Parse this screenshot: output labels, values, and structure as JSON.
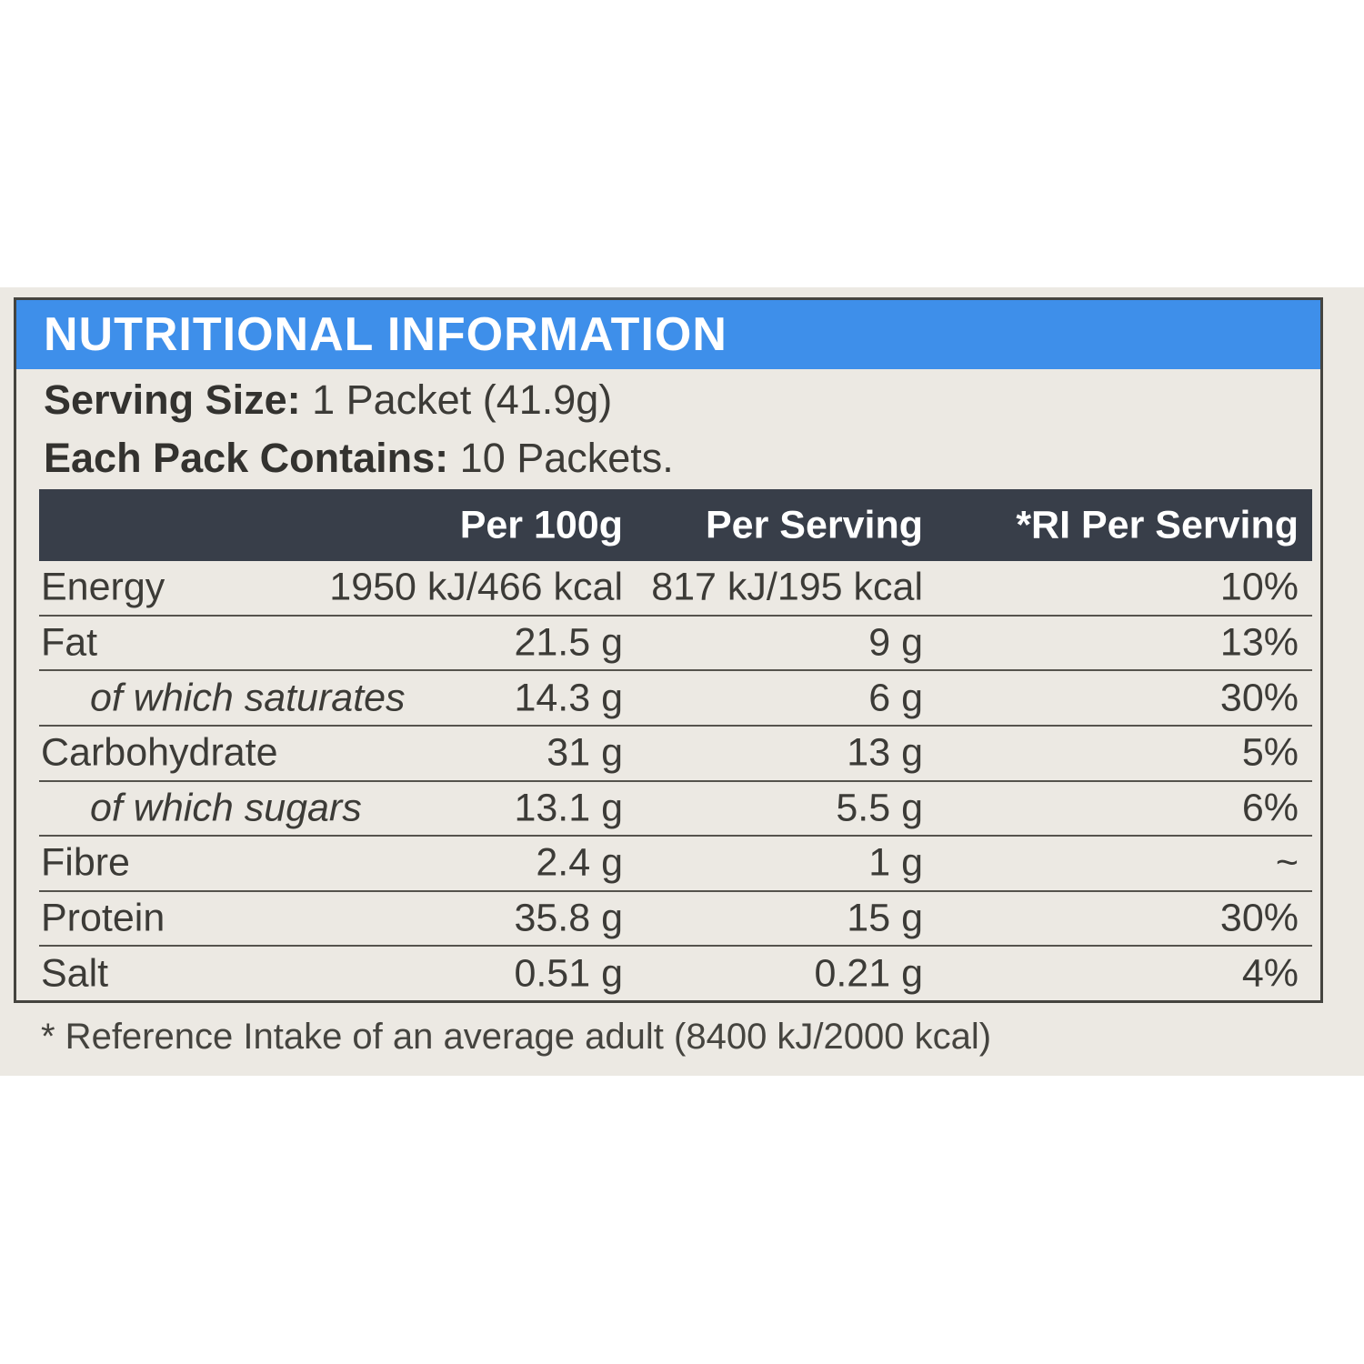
{
  "colors": {
    "banner_blue": "#3E8FEA",
    "header_navy": "#383E49",
    "label_background": "#ECE9E3",
    "text_dark": "#3C3B37",
    "divider_gray": "#55534D",
    "border_gray": "#45443F",
    "header_text_white": "#FFFFFF"
  },
  "label": {
    "title": "NUTRITIONAL INFORMATION",
    "serving_size_label": "Serving Size:",
    "serving_size_value": "1 Packet (41.9g)",
    "pack_contains_label": "Each Pack Contains:",
    "pack_contains_value": "10 Packets.",
    "footnote": "* Reference Intake of an average adult (8400 kJ/2000 kcal)"
  },
  "table": {
    "columns": [
      "",
      "Per 100g",
      "Per Serving",
      "*RI Per Serving"
    ],
    "rows": [
      {
        "nutrient": "Energy",
        "per_100g": "1950 kJ/466 kcal",
        "per_serving": "817 kJ/195 kcal",
        "ri": "10%",
        "sub": false
      },
      {
        "nutrient": "Fat",
        "per_100g": "21.5 g",
        "per_serving": "9 g",
        "ri": "13%",
        "sub": false
      },
      {
        "nutrient": "of which saturates",
        "per_100g": "14.3 g",
        "per_serving": "6 g",
        "ri": "30%",
        "sub": true
      },
      {
        "nutrient": "Carbohydrate",
        "per_100g": "31 g",
        "per_serving": "13 g",
        "ri": "5%",
        "sub": false
      },
      {
        "nutrient": "of which sugars",
        "per_100g": "13.1 g",
        "per_serving": "5.5 g",
        "ri": "6%",
        "sub": true
      },
      {
        "nutrient": "Fibre",
        "per_100g": "2.4 g",
        "per_serving": "1 g",
        "ri": "~",
        "sub": false
      },
      {
        "nutrient": "Protein",
        "per_100g": "35.8 g",
        "per_serving": "15 g",
        "ri": "30%",
        "sub": false
      },
      {
        "nutrient": "Salt",
        "per_100g": "0.51 g",
        "per_serving": "0.21 g",
        "ri": "4%",
        "sub": false
      }
    ]
  }
}
